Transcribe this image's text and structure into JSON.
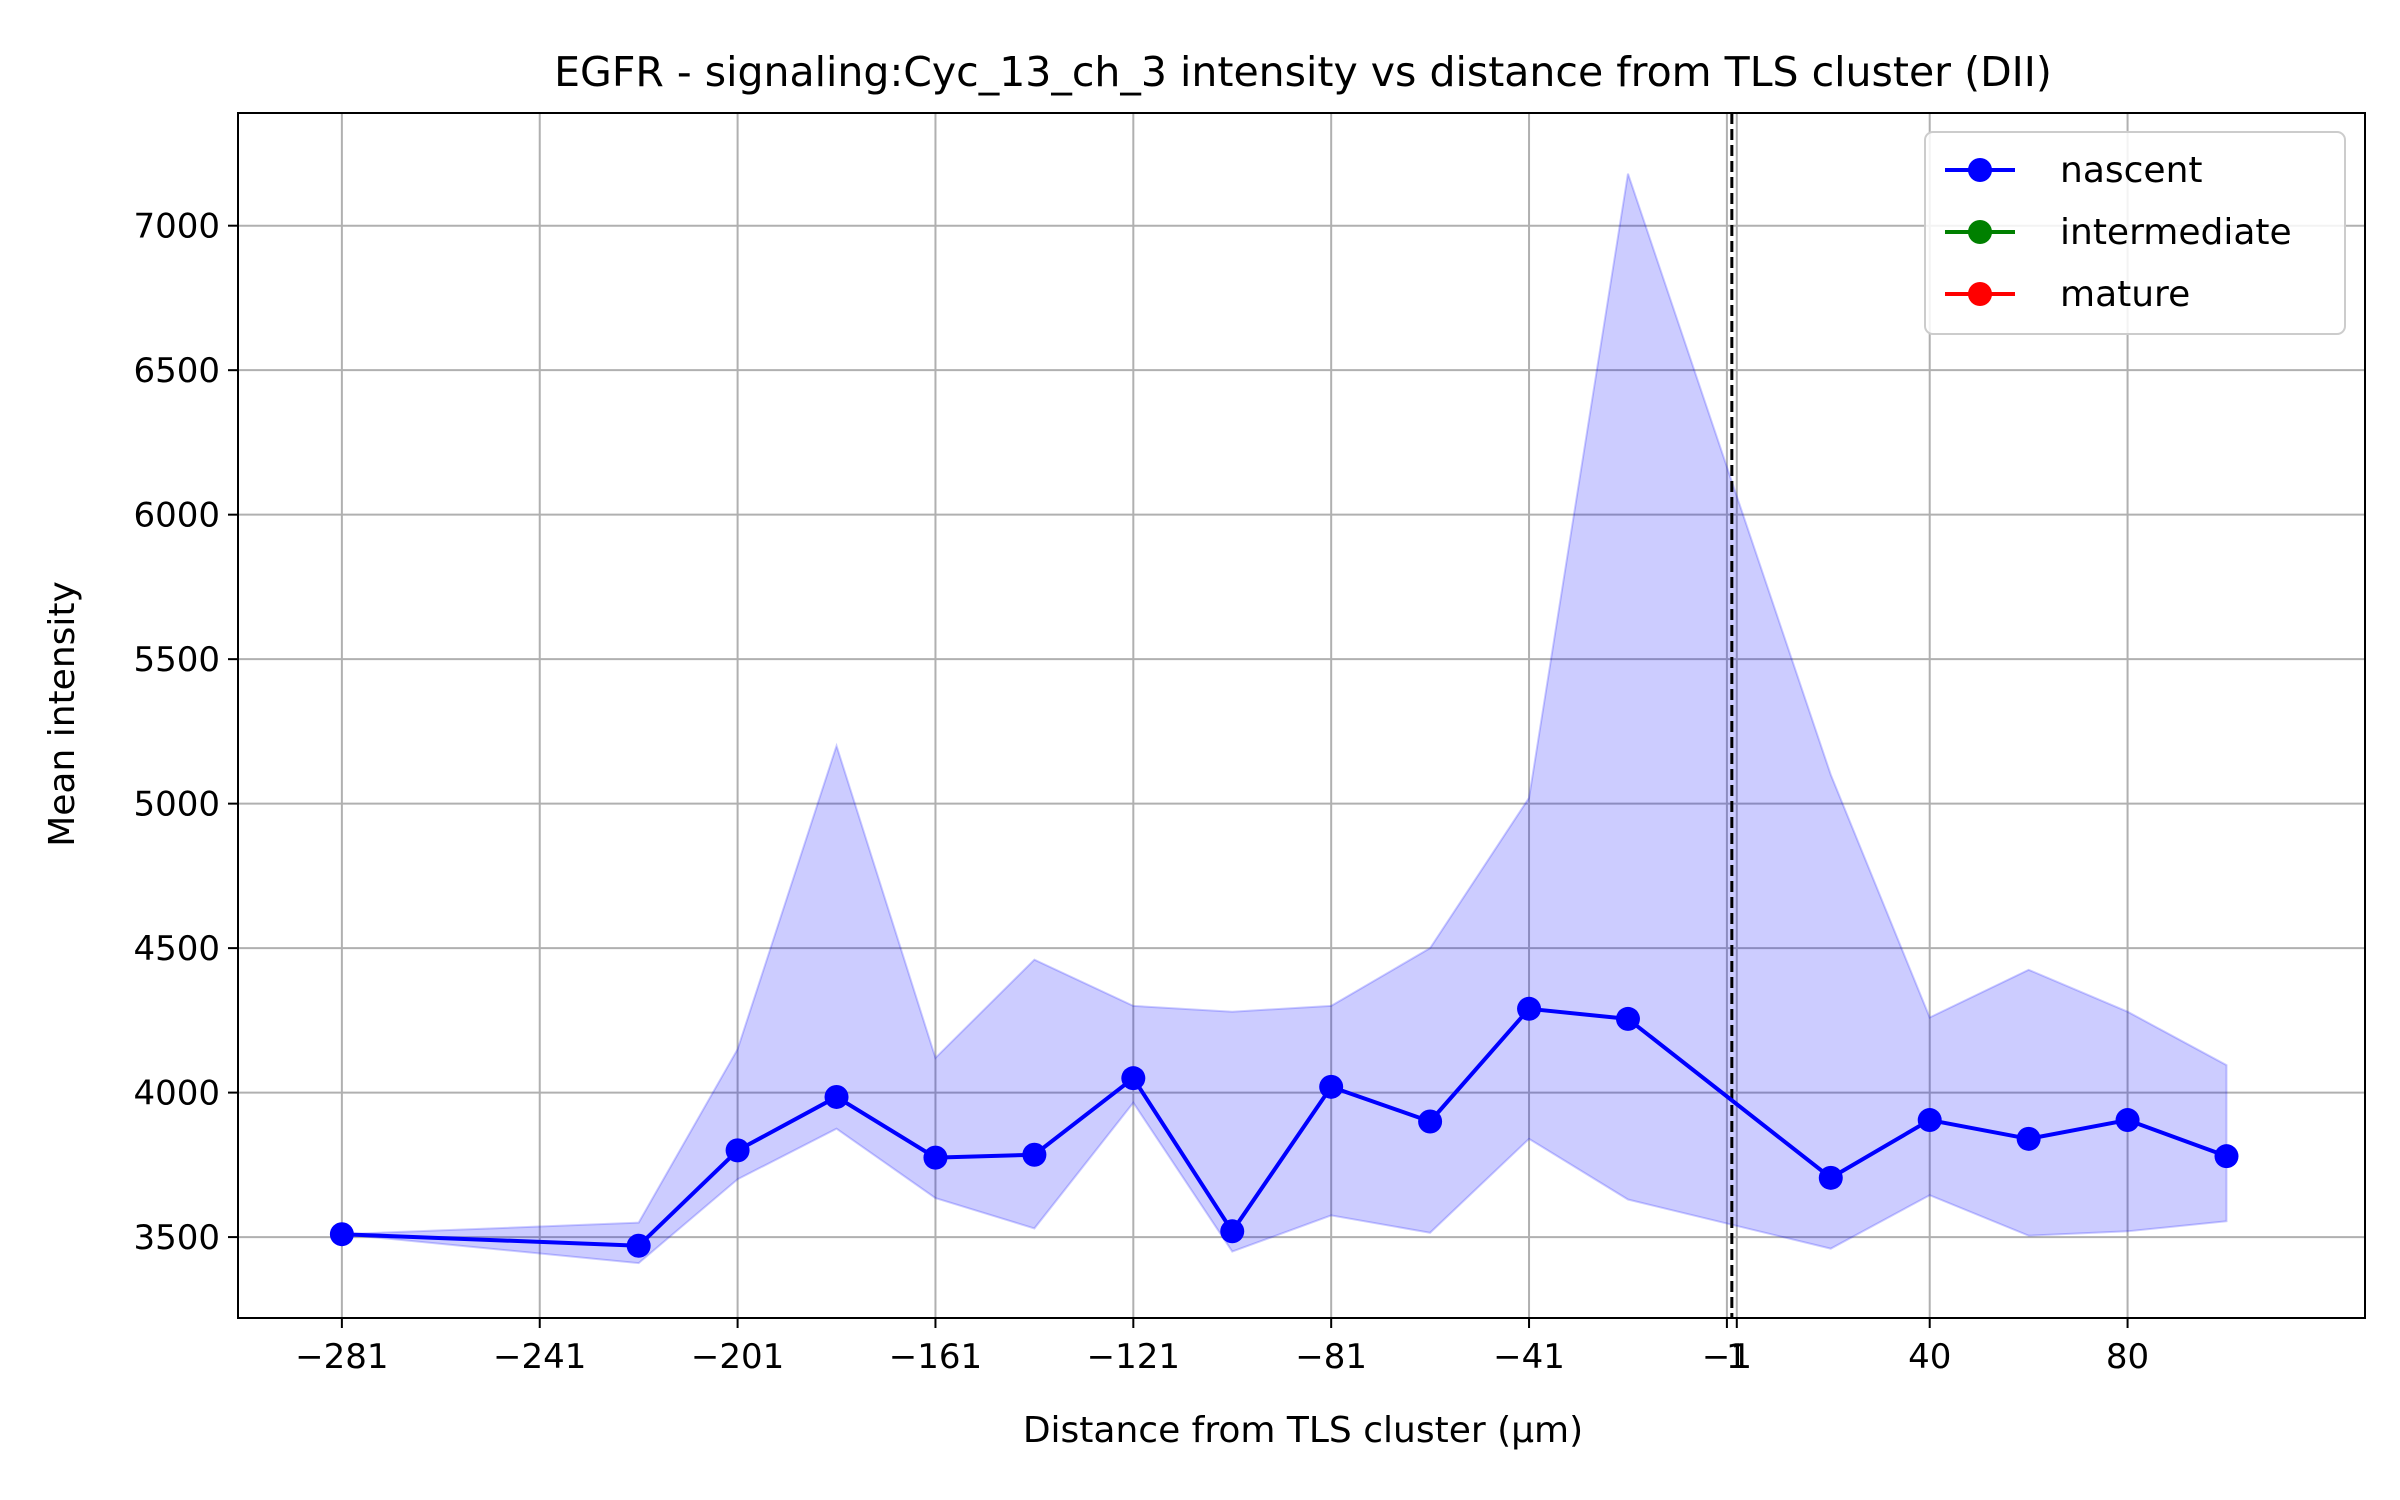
{
  "chart_data": {
    "type": "line",
    "title": "EGFR - signaling:Cyc_13_ch_3 intensity vs distance from TLS cluster (DII)",
    "xlabel": "Distance from TLS cluster (μm)",
    "ylabel": "Mean intensity",
    "xlim": [
      -302,
      128
    ],
    "ylim": [
      3220,
      7390
    ],
    "x_ticks": [
      -281,
      -241,
      -201,
      -161,
      -121,
      -81,
      -41,
      -1,
      1,
      40,
      80
    ],
    "x_tick_labels": [
      "−281",
      "−241",
      "−201",
      "−161",
      "−121",
      "−81",
      "−41",
      "−1",
      "1",
      "40",
      "80"
    ],
    "y_ticks": [
      3500,
      4000,
      4500,
      5000,
      5500,
      6000,
      6500,
      7000
    ],
    "y_tick_labels": [
      "3500",
      "4000",
      "4500",
      "5000",
      "5500",
      "6000",
      "6500",
      "7000"
    ],
    "grid": true,
    "legend_position": "top-right",
    "vline_x": 0,
    "series": [
      {
        "name": "nascent",
        "color": "#0000ff",
        "x": [
          -281,
          -221,
          -201,
          -181,
          -161,
          -141,
          -121,
          -101,
          -81,
          -61,
          -41,
          -21,
          20,
          40,
          60,
          80,
          100
        ],
        "y": [
          3510,
          3470,
          3800,
          3985,
          3775,
          3785,
          4050,
          3520,
          4020,
          3900,
          4290,
          4255,
          3705,
          3905,
          3840,
          3905,
          3780
        ],
        "band_upper": [
          3510,
          3550,
          4150,
          5200,
          4120,
          4460,
          4300,
          4280,
          4300,
          4500,
          5020,
          7180,
          5100,
          4260,
          4425,
          4280,
          4095
        ],
        "band_lower": [
          3510,
          3410,
          3700,
          3875,
          3635,
          3530,
          3965,
          3450,
          3575,
          3515,
          3840,
          3630,
          3460,
          3645,
          3505,
          3520,
          3555
        ]
      },
      {
        "name": "intermediate",
        "color": "#008000",
        "x": [],
        "y": []
      },
      {
        "name": "mature",
        "color": "#ff0000",
        "x": [],
        "y": []
      }
    ]
  }
}
